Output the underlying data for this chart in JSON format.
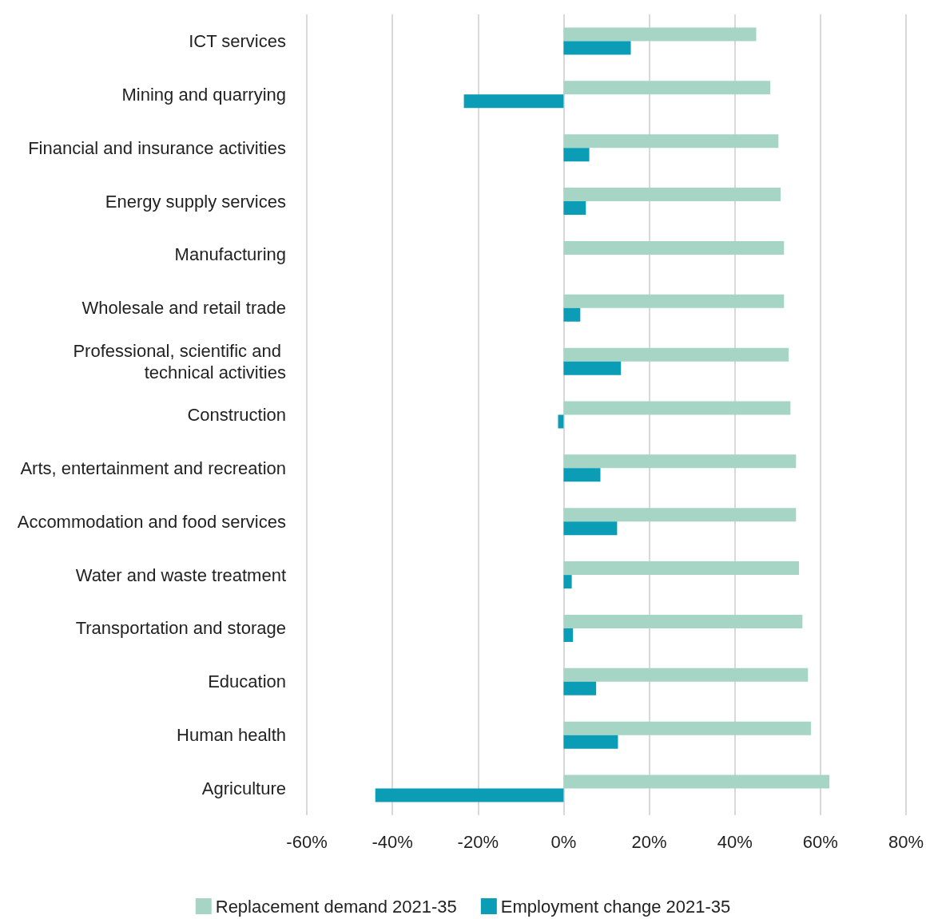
{
  "chart_data": {
    "type": "bar",
    "orientation": "horizontal",
    "categories": [
      "ICT services",
      "Mining and quarrying",
      "Financial and insurance activities",
      "Energy supply services",
      "Manufacturing",
      "Wholesale and retail trade",
      "Professional, scientific and technical activities",
      "Construction",
      "Arts, entertainment and recreation",
      "Accommodation and food services",
      "Water and waste treatment",
      "Transportation and storage",
      "Education",
      "Human health",
      "Agriculture"
    ],
    "series": [
      {
        "name": "Replacement demand 2021-35",
        "color": "#a6d5c5",
        "values": [
          45,
          48.3,
          50.2,
          50.7,
          51.5,
          51.5,
          52.6,
          53,
          54.3,
          54.3,
          55,
          55.8,
          57.1,
          57.8,
          62.1
        ]
      },
      {
        "name": "Employment change 2021-35",
        "color": "#0a9db5",
        "values": [
          15.7,
          -23.3,
          6,
          5.2,
          0,
          3.9,
          13.4,
          -1.3,
          8.6,
          12.5,
          1.9,
          2.2,
          7.6,
          12.7,
          -44
        ]
      }
    ],
    "xlim": [
      -60,
      80
    ],
    "xticks": [
      {
        "value": -60,
        "label": "-60%"
      },
      {
        "value": -40,
        "label": "-40%"
      },
      {
        "value": -20,
        "label": "-20%"
      },
      {
        "value": 0,
        "label": "0%"
      },
      {
        "value": 20,
        "label": "20%"
      },
      {
        "value": 40,
        "label": "40%"
      },
      {
        "value": 60,
        "label": "60%"
      },
      {
        "value": 80,
        "label": "80%"
      }
    ],
    "grid": "x",
    "legend": "bottom"
  }
}
